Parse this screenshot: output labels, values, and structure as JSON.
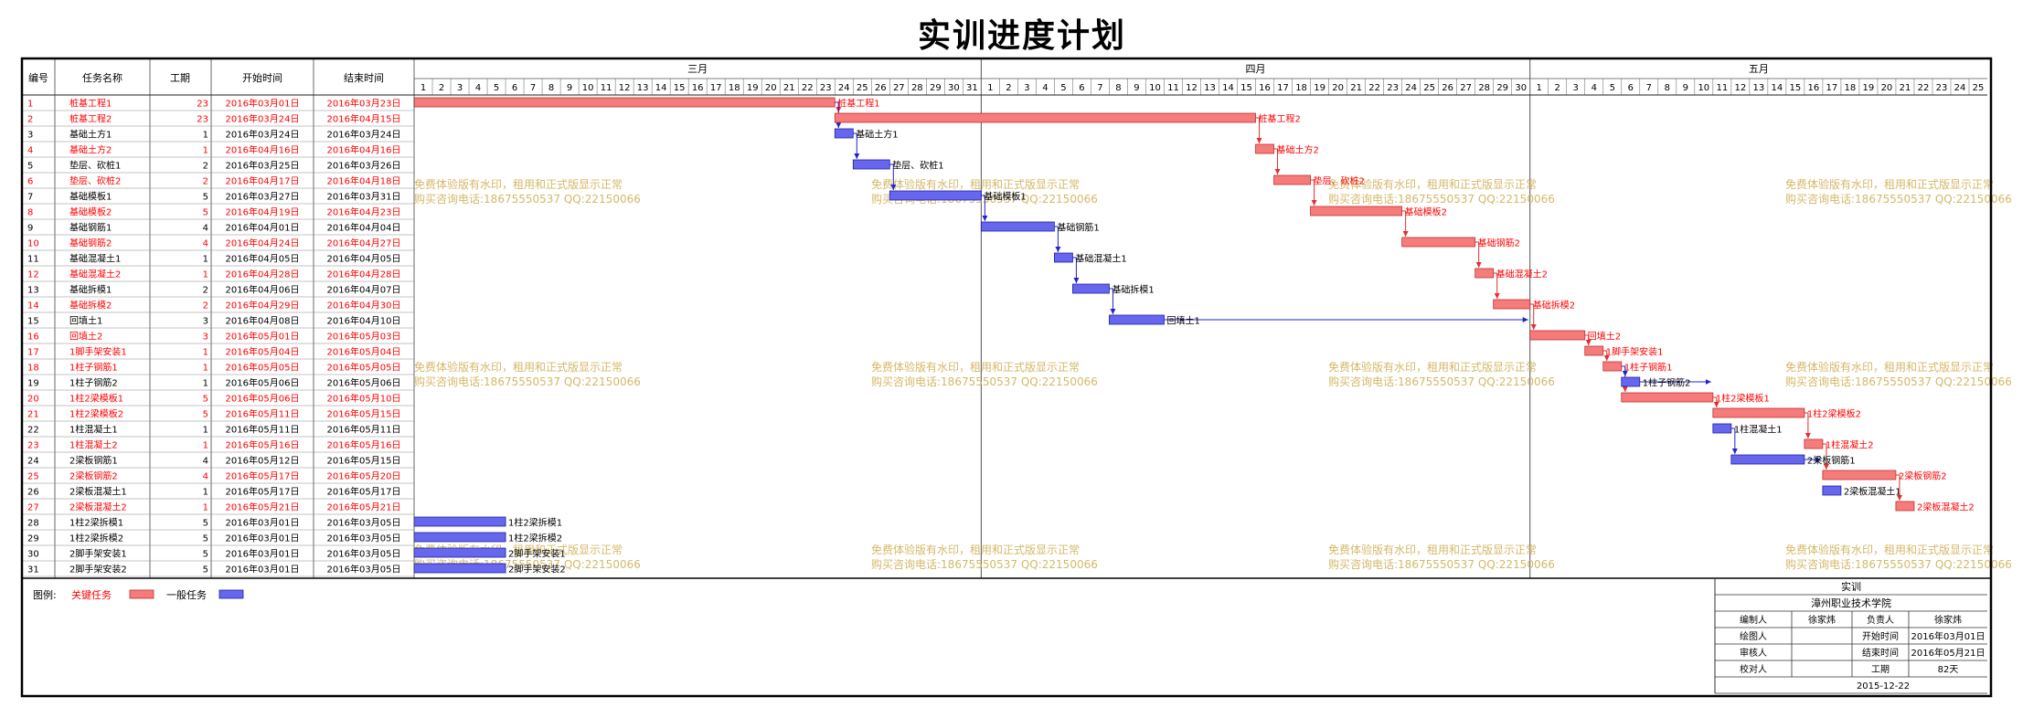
{
  "title": "实训进度计划",
  "colors": {
    "critical_fill": "#f67b7b",
    "critical_text": "#ff0000",
    "normal_fill": "#6666ee",
    "normal_text": "#000000",
    "link_critical": "#e03030",
    "link_normal": "#2222cc",
    "watermark": "#d4b868",
    "frame": "#000000"
  },
  "columns": {
    "id": "编号",
    "name": "任务名称",
    "duration": "工期",
    "start": "开始时间",
    "end": "结束时间"
  },
  "months": [
    {
      "name": "三月",
      "days": 31
    },
    {
      "name": "四月",
      "days": 30
    },
    {
      "name": "五月",
      "days": 25
    }
  ],
  "tasks": [
    {
      "id": "1",
      "name": "桩基工程1",
      "duration": 23,
      "start": "2016年03月01日",
      "end": "2016年03月23日",
      "critical": true,
      "label": "桩基工程1"
    },
    {
      "id": "2",
      "name": "桩基工程2",
      "duration": 23,
      "start": "2016年03月24日",
      "end": "2016年04月15日",
      "critical": true,
      "label": "桩基工程2"
    },
    {
      "id": "3",
      "name": "基础土方1",
      "duration": 1,
      "start": "2016年03月24日",
      "end": "2016年03月24日",
      "critical": false,
      "label": "基础土方1"
    },
    {
      "id": "4",
      "name": "基础土方2",
      "duration": 1,
      "start": "2016年04月16日",
      "end": "2016年04月16日",
      "critical": true,
      "label": "基础土方2"
    },
    {
      "id": "5",
      "name": "垫层、砍桩1",
      "duration": 2,
      "start": "2016年03月25日",
      "end": "2016年03月26日",
      "critical": false,
      "label": "垫层、砍桩1"
    },
    {
      "id": "6",
      "name": "垫层、砍桩2",
      "duration": 2,
      "start": "2016年04月17日",
      "end": "2016年04月18日",
      "critical": true,
      "label": "垫层、砍桩2"
    },
    {
      "id": "7",
      "name": "基础模板1",
      "duration": 5,
      "start": "2016年03月27日",
      "end": "2016年03月31日",
      "critical": false,
      "label": "基础模板1"
    },
    {
      "id": "8",
      "name": "基础模板2",
      "duration": 5,
      "start": "2016年04月19日",
      "end": "2016年04月23日",
      "critical": true,
      "label": "基础模板2"
    },
    {
      "id": "9",
      "name": "基础钢筋1",
      "duration": 4,
      "start": "2016年04月01日",
      "end": "2016年04月04日",
      "critical": false,
      "label": "基础钢筋1"
    },
    {
      "id": "10",
      "name": "基础钢筋2",
      "duration": 4,
      "start": "2016年04月24日",
      "end": "2016年04月27日",
      "critical": true,
      "label": "基础钢筋2"
    },
    {
      "id": "11",
      "name": "基础混凝土1",
      "duration": 1,
      "start": "2016年04月05日",
      "end": "2016年04月05日",
      "critical": false,
      "label": "基础混凝土1"
    },
    {
      "id": "12",
      "name": "基础混凝土2",
      "duration": 1,
      "start": "2016年04月28日",
      "end": "2016年04月28日",
      "critical": true,
      "label": "基础混凝土2"
    },
    {
      "id": "13",
      "name": "基础拆模1",
      "duration": 2,
      "start": "2016年04月06日",
      "end": "2016年04月07日",
      "critical": false,
      "label": "基础拆模1"
    },
    {
      "id": "14",
      "name": "基础拆模2",
      "duration": 2,
      "start": "2016年04月29日",
      "end": "2016年04月30日",
      "critical": true,
      "label": "基础拆模2"
    },
    {
      "id": "15",
      "name": "回填土1",
      "duration": 3,
      "start": "2016年04月08日",
      "end": "2016年04月10日",
      "critical": false,
      "label": "回填土1"
    },
    {
      "id": "16",
      "name": "回填土2",
      "duration": 3,
      "start": "2016年05月01日",
      "end": "2016年05月03日",
      "critical": true,
      "label": "回填土2"
    },
    {
      "id": "17",
      "name": "1脚手架安装1",
      "duration": 1,
      "start": "2016年05月04日",
      "end": "2016年05月04日",
      "critical": true,
      "label": "1脚手架安装1"
    },
    {
      "id": "18",
      "name": "1柱子钢筋1",
      "duration": 1,
      "start": "2016年05月05日",
      "end": "2016年05月05日",
      "critical": true,
      "label": "1柱子钢筋1"
    },
    {
      "id": "19",
      "name": "1柱子钢筋2",
      "duration": 1,
      "start": "2016年05月06日",
      "end": "2016年05月06日",
      "critical": false,
      "label": "1柱子钢筋2"
    },
    {
      "id": "20",
      "name": "1柱2梁模板1",
      "duration": 5,
      "start": "2016年05月06日",
      "end": "2016年05月10日",
      "critical": true,
      "label": "1柱2梁模板1"
    },
    {
      "id": "21",
      "name": "1柱2梁模板2",
      "duration": 5,
      "start": "2016年05月11日",
      "end": "2016年05月15日",
      "critical": true,
      "label": "1柱2梁模板2"
    },
    {
      "id": "22",
      "name": "1柱混凝土1",
      "duration": 1,
      "start": "2016年05月11日",
      "end": "2016年05月11日",
      "critical": false,
      "label": "1柱混凝土1"
    },
    {
      "id": "23",
      "name": "1柱混凝土2",
      "duration": 1,
      "start": "2016年05月16日",
      "end": "2016年05月16日",
      "critical": true,
      "label": "1柱混凝土2"
    },
    {
      "id": "24",
      "name": "2梁板钢筋1",
      "duration": 4,
      "start": "2016年05月12日",
      "end": "2016年05月15日",
      "critical": false,
      "label": "2梁板钢筋1"
    },
    {
      "id": "25",
      "name": "2梁板钢筋2",
      "duration": 4,
      "start": "2016年05月17日",
      "end": "2016年05月20日",
      "critical": true,
      "label": "2梁板钢筋2"
    },
    {
      "id": "26",
      "name": "2梁板混凝土1",
      "duration": 1,
      "start": "2016年05月17日",
      "end": "2016年05月17日",
      "critical": false,
      "label": "2梁板混凝土1"
    },
    {
      "id": "27",
      "name": "2梁板混凝土2",
      "duration": 1,
      "start": "2016年05月21日",
      "end": "2016年05月21日",
      "critical": true,
      "label": "2梁板混凝土2"
    },
    {
      "id": "28",
      "name": "1柱2梁拆模1",
      "duration": 5,
      "start": "2016年03月01日",
      "end": "2016年03月05日",
      "critical": false,
      "label": "1柱2梁拆模1"
    },
    {
      "id": "29",
      "name": "1柱2梁拆模2",
      "duration": 5,
      "start": "2016年03月01日",
      "end": "2016年03月05日",
      "critical": false,
      "label": "1柱2梁拆模2"
    },
    {
      "id": "30",
      "name": "2脚手架安装1",
      "duration": 5,
      "start": "2016年03月01日",
      "end": "2016年03月05日",
      "critical": false,
      "label": "2脚手架安装1"
    },
    {
      "id": "31",
      "name": "2脚手架安装2",
      "duration": 5,
      "start": "2016年03月01日",
      "end": "2016年03月05日",
      "critical": false,
      "label": "2脚手架安装2"
    }
  ],
  "links": [
    [
      1,
      2
    ],
    [
      1,
      3
    ],
    [
      3,
      5
    ],
    [
      5,
      7
    ],
    [
      7,
      9
    ],
    [
      9,
      11
    ],
    [
      11,
      13
    ],
    [
      13,
      15
    ],
    [
      15,
      16
    ],
    [
      2,
      4
    ],
    [
      4,
      6
    ],
    [
      6,
      8
    ],
    [
      8,
      10
    ],
    [
      10,
      12
    ],
    [
      12,
      14
    ],
    [
      14,
      16
    ],
    [
      16,
      17
    ],
    [
      17,
      18
    ],
    [
      18,
      20
    ],
    [
      18,
      19
    ],
    [
      19,
      22
    ],
    [
      20,
      21
    ],
    [
      22,
      24
    ],
    [
      21,
      23
    ],
    [
      23,
      25
    ],
    [
      24,
      26
    ],
    [
      25,
      27
    ]
  ],
  "legend": {
    "label": "图例:",
    "critical": "关键任务",
    "normal": "一般任务"
  },
  "watermark": {
    "line1": "免费体验版有水印，租用和正式版显示正常",
    "line2": "购买咨询电话:18675550537 QQ:22150066"
  },
  "info_block": {
    "row1": "实训",
    "row2": "漳州职业技术学院",
    "fields": [
      {
        "k1": "编制人",
        "v1": "徐家炜",
        "k2": "负责人",
        "v2": "徐家炜"
      },
      {
        "k1": "绘图人",
        "v1": "",
        "k2": "开始时间",
        "v2": "2016年03月01日"
      },
      {
        "k1": "审核人",
        "v1": "",
        "k2": "结束时间",
        "v2": "2016年05月21日"
      },
      {
        "k1": "校对人",
        "v1": "",
        "k2": "工期",
        "v2": "82天"
      }
    ],
    "date": "2015-12-22"
  }
}
